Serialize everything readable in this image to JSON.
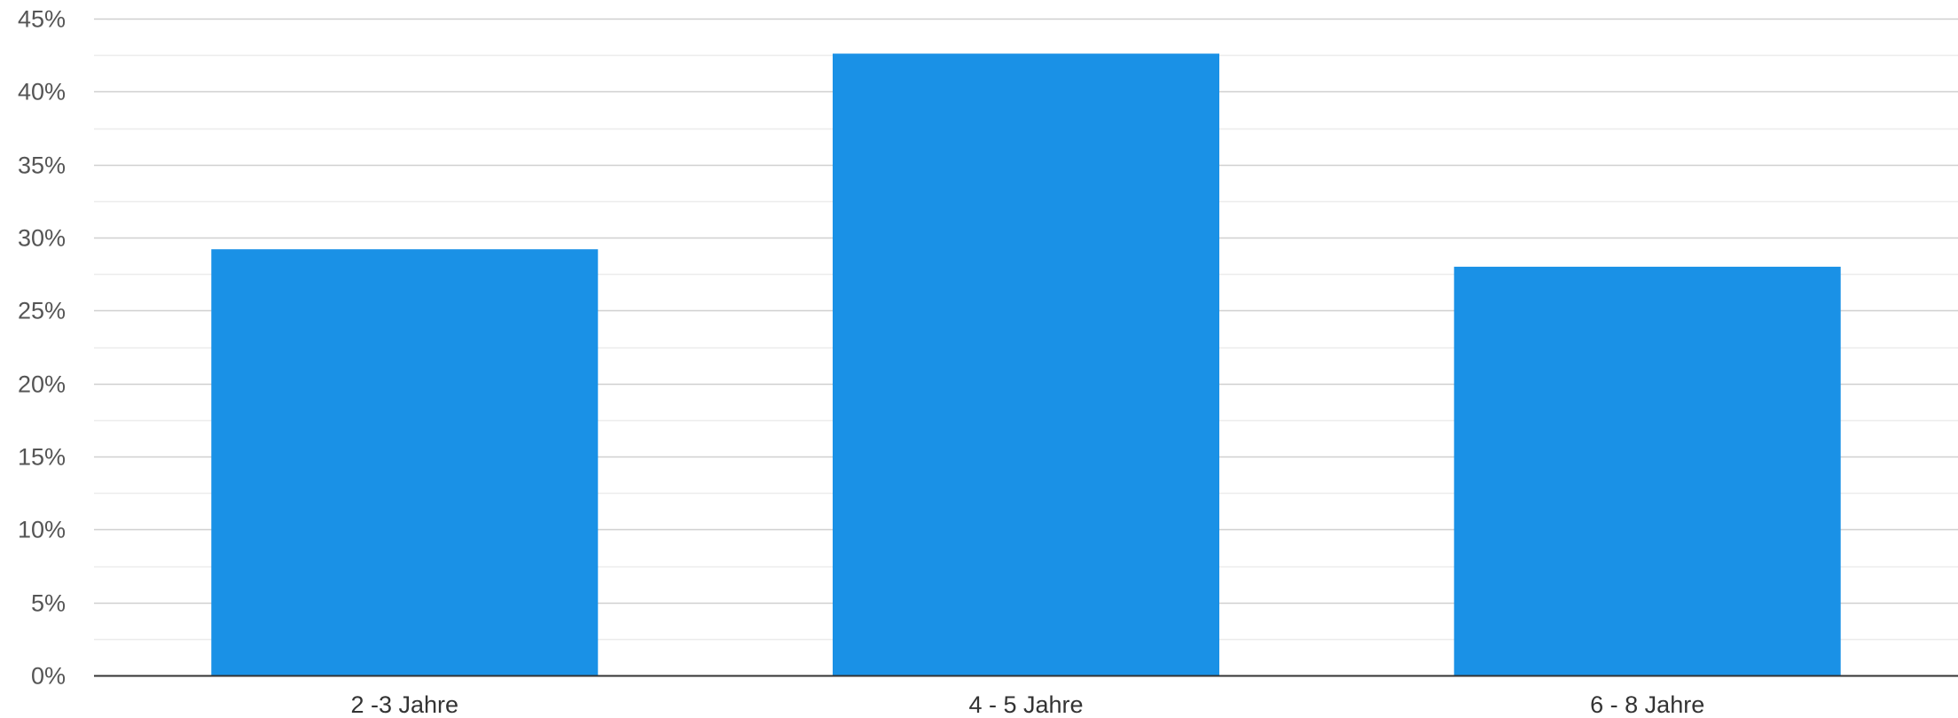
{
  "chart_data": {
    "type": "bar",
    "categories": [
      "2 -3 Jahre",
      "4 - 5 Jahre",
      "6 - 8 Jahre"
    ],
    "series": [
      {
        "values": [
          29.2,
          42.6,
          28.0
        ]
      }
    ],
    "title": "",
    "xlabel": "",
    "ylabel": "",
    "ylim": [
      0,
      45
    ],
    "y_ticks": [
      "0%",
      "5%",
      "10%",
      "15%",
      "20%",
      "25%",
      "30%",
      "35%",
      "40%",
      "45%"
    ],
    "y_tick_values": [
      0,
      5,
      10,
      15,
      20,
      25,
      30,
      35,
      40,
      45
    ],
    "grid": true,
    "minor_grid": true,
    "legend": "none",
    "colors": {
      "bar": "#1a91e6",
      "major_grid": "#d0d0d0",
      "minor_grid": "#ececec",
      "axis": "#333333"
    }
  }
}
